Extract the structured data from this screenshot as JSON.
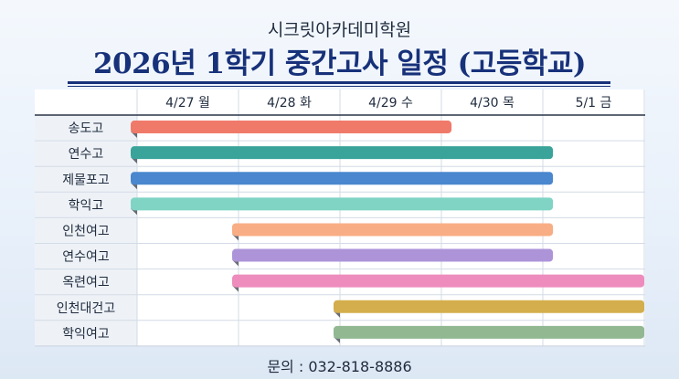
{
  "header": {
    "subtitle": "시크릿아카데미학원",
    "title": "2026년 1학기 중간고사 일정 (고등학교)"
  },
  "footer": {
    "contact": "문의 : 032-818-8886"
  },
  "chart_data": {
    "type": "gantt",
    "columns": [
      "4/27 월",
      "4/28 화",
      "4/29 수",
      "4/30 목",
      "5/1 금"
    ],
    "rows": [
      {
        "name": "송도고",
        "start": 0,
        "end": 3.1,
        "color": "#f07a6a"
      },
      {
        "name": "연수고",
        "start": 0,
        "end": 4.1,
        "color": "#3aa39a"
      },
      {
        "name": "제물포고",
        "start": 0,
        "end": 4.1,
        "color": "#4a87cf"
      },
      {
        "name": "학익고",
        "start": 0,
        "end": 4.1,
        "color": "#7fd4c4"
      },
      {
        "name": "인천여고",
        "start": 1,
        "end": 4.1,
        "color": "#f9ad84"
      },
      {
        "name": "연수여고",
        "start": 1,
        "end": 4.1,
        "color": "#ad94d8"
      },
      {
        "name": "옥련여고",
        "start": 1,
        "end": 5,
        "color": "#ee8cbd"
      },
      {
        "name": "인천대건고",
        "start": 2,
        "end": 5,
        "color": "#d4ae4c"
      },
      {
        "name": "학익여고",
        "start": 2,
        "end": 5,
        "color": "#92b892"
      }
    ]
  }
}
